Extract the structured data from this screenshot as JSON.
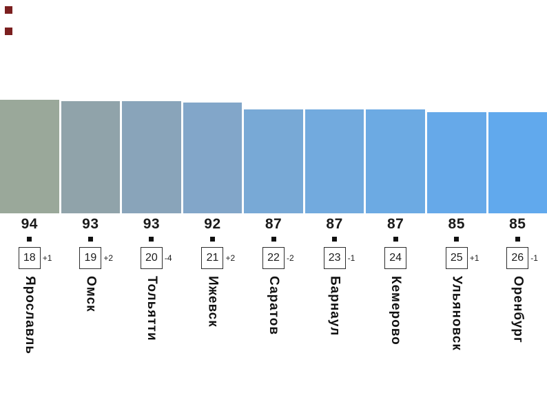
{
  "colors": {
    "background": "#FFFFFF",
    "marker": "#7B1F1F",
    "tick": "#111111",
    "text": "#1A1A1A",
    "rank_box_border": "#2B2B2B"
  },
  "chart_data": {
    "type": "bar",
    "title": "",
    "xlabel": "",
    "ylabel": "",
    "legend_position": "none",
    "grid": false,
    "categories": [
      "Ярославль",
      "Омск",
      "Тольятти",
      "Ижевск",
      "Саратов",
      "Барнаул",
      "Кемерово",
      "Ульяновск",
      "Оренбург"
    ],
    "values": [
      94,
      93,
      93,
      92,
      87,
      87,
      87,
      85,
      85
    ],
    "items": [
      {
        "city": "Ярославль",
        "value": 94,
        "rank": 18,
        "change": "+1",
        "color": "#9AA89A"
      },
      {
        "city": "Омск",
        "value": 93,
        "rank": 19,
        "change": "+2",
        "color": "#90A3AA"
      },
      {
        "city": "Тольятти",
        "value": 93,
        "rank": 20,
        "change": "-4",
        "color": "#89A4BA"
      },
      {
        "city": "Ижевск",
        "value": 92,
        "rank": 21,
        "change": "+2",
        "color": "#82A6C9"
      },
      {
        "city": "Саратов",
        "value": 87,
        "rank": 22,
        "change": "-2",
        "color": "#78A9D6"
      },
      {
        "city": "Барнаул",
        "value": 87,
        "rank": 23,
        "change": "-1",
        "color": "#72AADE"
      },
      {
        "city": "Кемерово",
        "value": 87,
        "rank": 24,
        "change": "",
        "color": "#6CAAE3"
      },
      {
        "city": "Ульяновск",
        "value": 85,
        "rank": 25,
        "change": "+1",
        "color": "#66A9E9"
      },
      {
        "city": "Оренбург",
        "value": 85,
        "rank": 26,
        "change": "-1",
        "color": "#61A9ED"
      }
    ]
  }
}
